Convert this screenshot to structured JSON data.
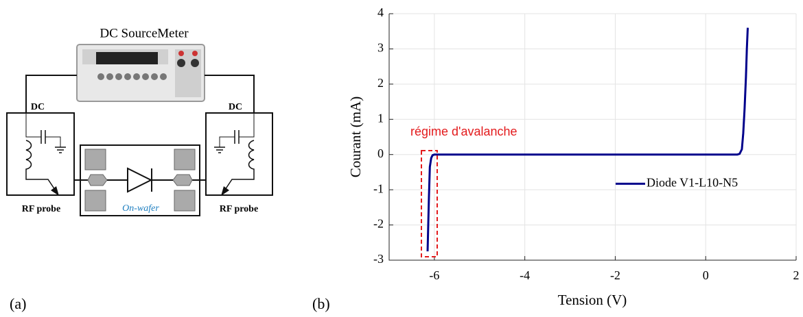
{
  "diagram": {
    "instrument": "DC SourceMeter",
    "left_port": "DC",
    "right_port": "DC",
    "left_probe": "RF probe",
    "right_probe": "RF probe",
    "device": "On-wafer"
  },
  "panel_labels": [
    "(a)",
    "(b)"
  ],
  "chart_data": {
    "type": "line",
    "x_label": "Tension (V)",
    "y_label": "Courant (mA)",
    "annotation": "régime d'avalanche",
    "x": [
      -6.15,
      -6.12,
      -6.1,
      -6.07,
      -6.04,
      -6.0,
      -4,
      -2,
      0,
      0.7,
      0.75,
      0.8,
      0.83,
      0.86,
      0.89,
      0.91,
      0.93
    ],
    "series": [
      {
        "name": "Diode V1-L10-N5",
        "color": "#00008b",
        "values": [
          -2.75,
          -1.2,
          -0.35,
          -0.1,
          -0.02,
          0,
          0,
          0,
          0,
          0,
          0.02,
          0.15,
          0.6,
          1.3,
          2.2,
          3.0,
          3.6
        ]
      }
    ],
    "xlim": [
      -7,
      2
    ],
    "xticks": [
      -6,
      -4,
      -2,
      0,
      2
    ],
    "ylim": [
      -3,
      4
    ],
    "yticks": [
      -3,
      -2,
      -1,
      0,
      1,
      2,
      3,
      4
    ],
    "grid": true,
    "legend_position": "right"
  }
}
